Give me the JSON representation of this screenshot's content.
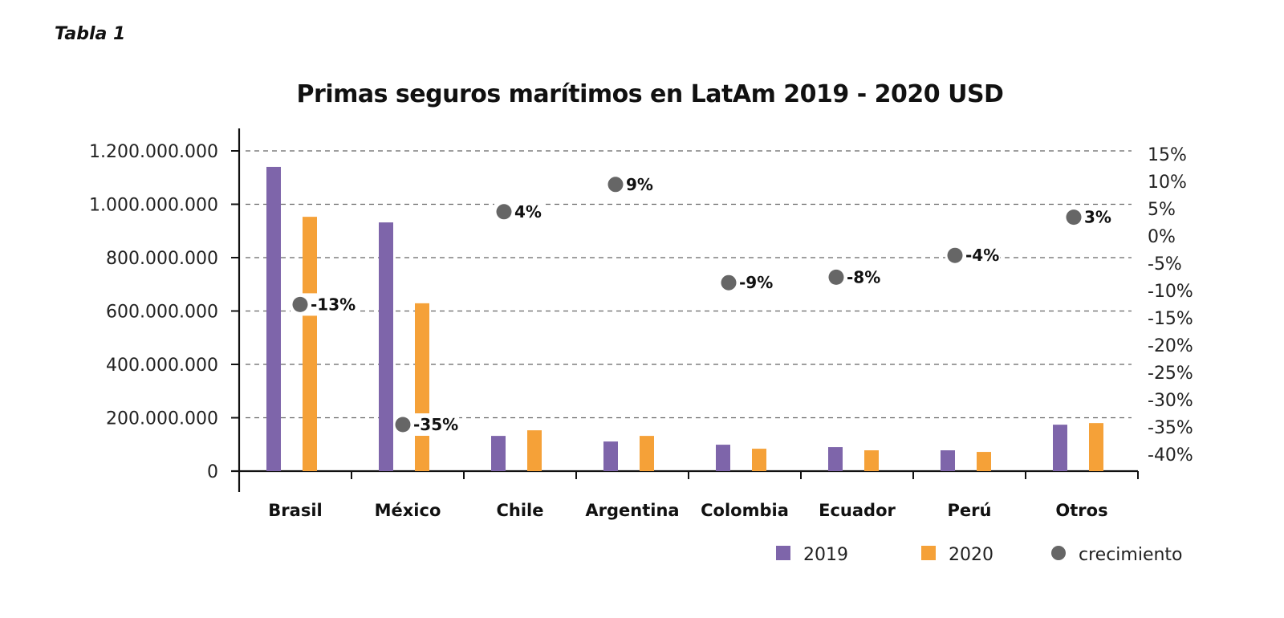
{
  "caption": "Tabla 1",
  "chart_data": {
    "type": "bar",
    "title": "Primas seguros marítimos en LatAm 2019 - 2020 USD",
    "xlabel": "",
    "ylabel": "",
    "categories": [
      "Brasil",
      "México",
      "Chile",
      "Argentina",
      "Colombia",
      "Ecuador",
      "Perú",
      "Otros"
    ],
    "series": [
      {
        "name": "2019",
        "color": "#7E65AA",
        "axis": "left",
        "values": [
          1140000000,
          932000000,
          132000000,
          111000000,
          99000000,
          90000000,
          78000000,
          174000000
        ]
      },
      {
        "name": "2020",
        "color": "#F5A138",
        "axis": "left",
        "values": [
          953000000,
          629000000,
          153000000,
          132000000,
          84000000,
          78000000,
          72000000,
          180000000
        ]
      },
      {
        "name": "crecimiento",
        "color": "#666666",
        "axis": "right",
        "marker": "circle",
        "values": [
          -13,
          -35,
          4,
          9,
          -9,
          -8,
          -4,
          3
        ],
        "labels": [
          "-13%",
          "-35%",
          "4%",
          "9%",
          "-9%",
          "-8%",
          "-4%",
          "3%"
        ]
      }
    ],
    "ylim": [
      0,
      1200000000
    ],
    "y_ticks": [
      0,
      200000000,
      400000000,
      600000000,
      800000000,
      1000000000,
      1200000000
    ],
    "y_tick_labels": [
      "0",
      "200.000.000",
      "400.000.000",
      "600.000.000",
      "800.000.000",
      "1.000.000.000",
      "1.200.000.000"
    ],
    "y2lim": [
      -40,
      15
    ],
    "y2_ticks": [
      15,
      10,
      5,
      0,
      -5,
      -10,
      -15,
      -20,
      -25,
      -30,
      -35,
      -40
    ],
    "y2_tick_labels": [
      "15%",
      "10%",
      "5%",
      "0%",
      "-5%",
      "-10%",
      "-15%",
      "-20%",
      "-25%",
      "-30%",
      "-35%",
      "-40%"
    ],
    "grid": true,
    "grid_style": "dashed horizontal",
    "legend": {
      "placement": "bottom-right",
      "entries": [
        {
          "label": "2019",
          "color": "#7E65AA",
          "shape": "square"
        },
        {
          "label": "2020",
          "color": "#F5A138",
          "shape": "square"
        },
        {
          "label": "crecimiento",
          "color": "#666666",
          "shape": "circle"
        }
      ]
    }
  }
}
